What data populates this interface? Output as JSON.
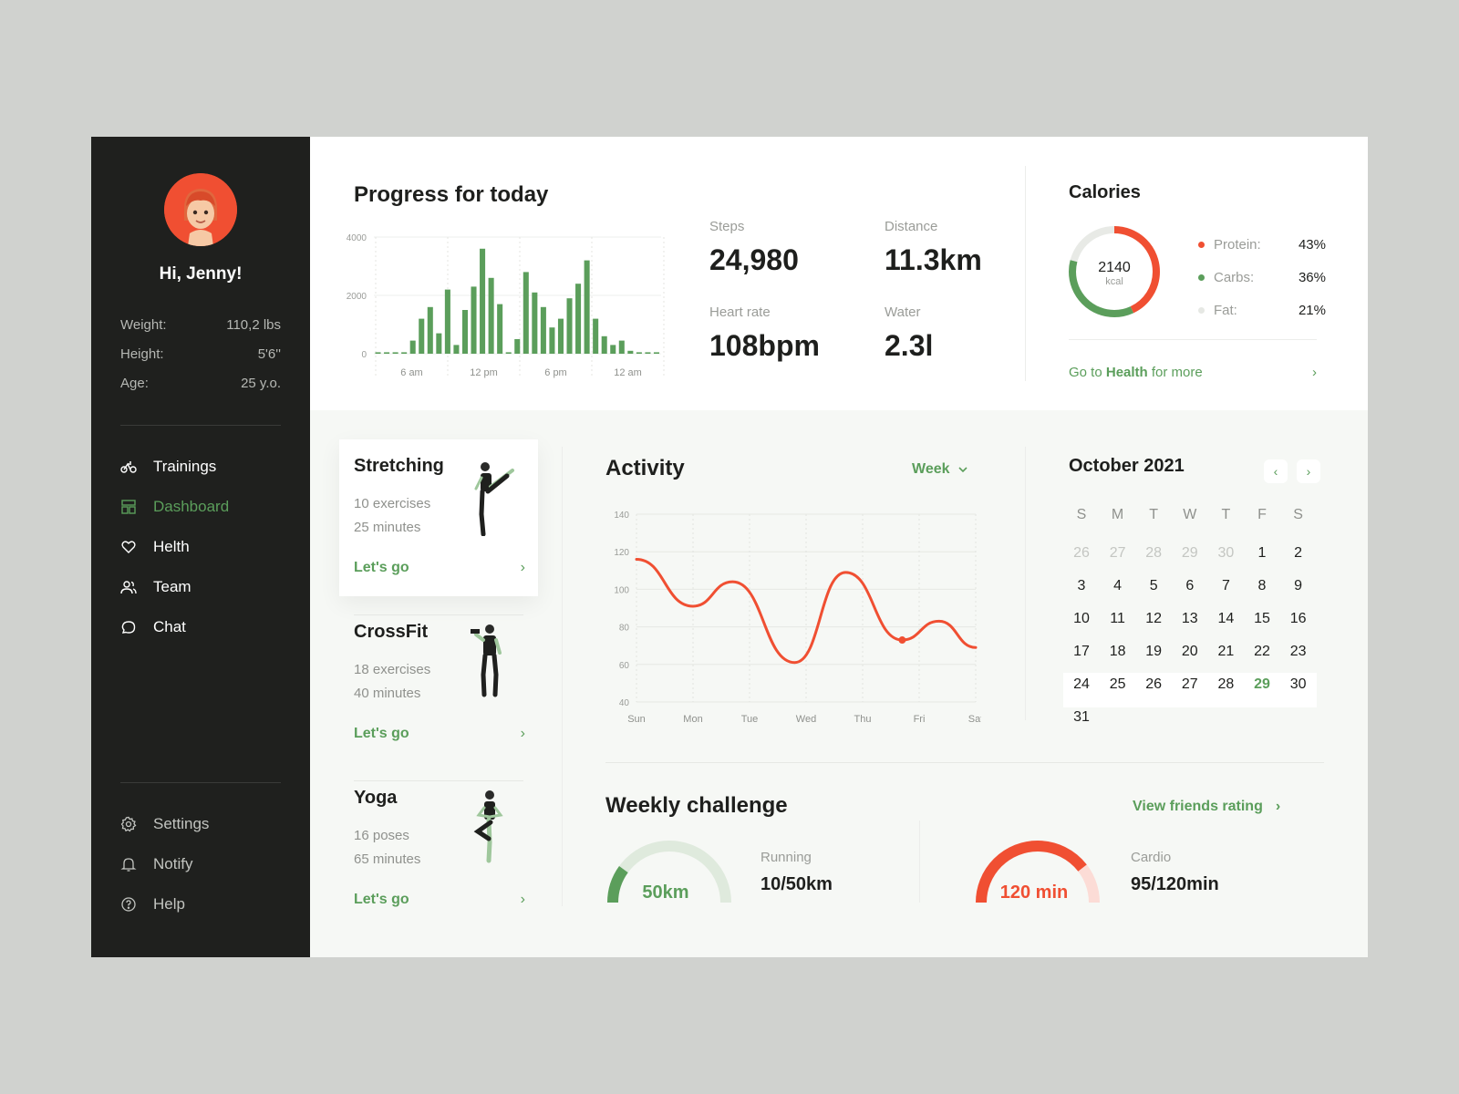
{
  "user": {
    "greeting": "Hi, Jenny!",
    "stats": [
      {
        "label": "Weight:",
        "value": "110,2 lbs"
      },
      {
        "label": "Height:",
        "value": "5'6''"
      },
      {
        "label": "Age:",
        "value": "25 y.o."
      }
    ]
  },
  "nav": {
    "main": [
      {
        "label": "Trainings",
        "icon": "bike-icon"
      },
      {
        "label": "Dashboard",
        "icon": "dashboard-icon",
        "active": true
      },
      {
        "label": "Helth",
        "icon": "heart-icon"
      },
      {
        "label": "Team",
        "icon": "team-icon"
      },
      {
        "label": "Chat",
        "icon": "chat-icon"
      }
    ],
    "secondary": [
      {
        "label": "Settings",
        "icon": "gear-icon"
      },
      {
        "label": "Notify",
        "icon": "bell-icon"
      },
      {
        "label": "Help",
        "icon": "help-icon"
      }
    ]
  },
  "progress": {
    "title": "Progress for today",
    "metrics": [
      {
        "label": "Steps",
        "value": "24,980"
      },
      {
        "label": "Distance",
        "value": "11.3km"
      },
      {
        "label": "Heart rate",
        "value": "108bpm"
      },
      {
        "label": "Water",
        "value": "2.3l"
      }
    ]
  },
  "calories": {
    "title": "Calories",
    "total": "2140",
    "unit": "kcal",
    "items": [
      {
        "label": "Protein:",
        "value": "43%",
        "color": "#f04f32"
      },
      {
        "label": "Carbs:",
        "value": "36%",
        "color": "#5b9e5b"
      },
      {
        "label": "Fat:",
        "value": "21%",
        "color": "#e6e8e4"
      }
    ],
    "link_prefix": "Go to ",
    "link_bold": "Health",
    "link_suffix": " for more"
  },
  "trainings": [
    {
      "name": "Stretching",
      "line1": "10 exercises",
      "line2": "25 minutes",
      "cta": "Let's go"
    },
    {
      "name": "CrossFit",
      "line1": "18 exercises",
      "line2": "40 minutes",
      "cta": "Let's go"
    },
    {
      "name": "Yoga",
      "line1": "16 poses",
      "line2": "65 minutes",
      "cta": "Let's go"
    }
  ],
  "activity": {
    "title": "Activity",
    "period": "Week"
  },
  "calendar": {
    "title": "October 2021",
    "weekdays": [
      "S",
      "M",
      "T",
      "W",
      "T",
      "F",
      "S"
    ],
    "days": [
      [
        "26",
        "27",
        "28",
        "29",
        "30",
        "1",
        "2"
      ],
      [
        "3",
        "4",
        "5",
        "6",
        "7",
        "8",
        "9"
      ],
      [
        "10",
        "11",
        "12",
        "13",
        "14",
        "15",
        "16"
      ],
      [
        "17",
        "18",
        "19",
        "20",
        "21",
        "22",
        "23"
      ],
      [
        "24",
        "25",
        "26",
        "27",
        "28",
        "29",
        "30"
      ],
      [
        "31"
      ]
    ],
    "dim_first_row_count": 5,
    "today": "29"
  },
  "challenge": {
    "title": "Weekly challenge",
    "link": "View friends rating",
    "items": [
      {
        "gauge_label": "50km",
        "name": "Running",
        "value": "10/50km",
        "progress": 0.2,
        "color": "#5b9e5b",
        "track": "#dfeadd"
      },
      {
        "gauge_label": "120 min",
        "name": "Cardio",
        "value": "95/120min",
        "progress": 0.79,
        "color": "#f04f32",
        "track": "#fcdcd6"
      }
    ]
  },
  "chart_data": [
    {
      "type": "bar",
      "ylim": [
        0,
        4000
      ],
      "yticks": [
        "4000",
        "2000",
        "0"
      ],
      "xticks": [
        "6 am",
        "12 pm",
        "6 pm",
        "12 am"
      ],
      "values": [
        50,
        50,
        50,
        50,
        450,
        1200,
        1600,
        700,
        2200,
        300,
        1500,
        2300,
        3600,
        2600,
        1700,
        50,
        500,
        2800,
        2100,
        1600,
        900,
        1200,
        1900,
        2400,
        3200,
        1200,
        600,
        300,
        450,
        100,
        50,
        50,
        50
      ],
      "color": "#5b9e5b"
    },
    {
      "type": "line",
      "categories": [
        "Sun",
        "Mon",
        "Tue",
        "Wed",
        "Thu",
        "Fri",
        "Sat"
      ],
      "yticks": [
        "140",
        "120",
        "100",
        "80",
        "60",
        "40"
      ],
      "ylim": [
        40,
        140
      ],
      "points": [
        [
          0,
          116
        ],
        [
          1,
          91
        ],
        [
          1.7,
          104
        ],
        [
          2.8,
          61
        ],
        [
          3.7,
          109
        ],
        [
          4.7,
          73
        ],
        [
          5.35,
          83
        ],
        [
          6,
          69
        ]
      ],
      "color": "#f04f32"
    }
  ]
}
